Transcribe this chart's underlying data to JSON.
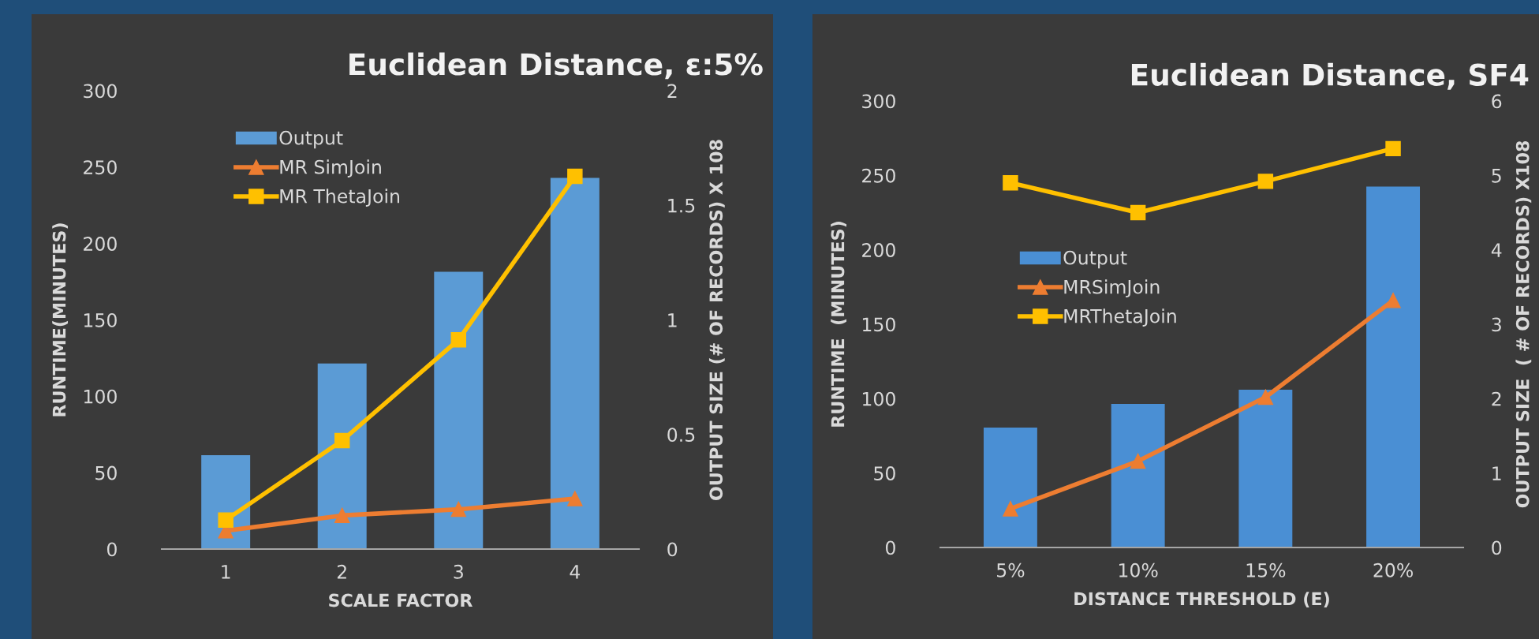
{
  "chart_data": [
    {
      "type": "bar",
      "title": "Euclidean Distance, ε:5%",
      "xlabel": "SCALE FACTOR",
      "ylabel": "RUNTIME(MINUTES)",
      "y2label": "OUTPUT SIZE (# OF RECORDS) X 108",
      "categories": [
        "1",
        "2",
        "3",
        "4"
      ],
      "series": [
        {
          "name": "Output",
          "axis": "y2",
          "color": "#5b9bd5",
          "values": [
            0.41,
            0.81,
            1.21,
            1.62
          ]
        },
        {
          "name": "MR SimJoin",
          "type": "line",
          "marker": "triangle",
          "color": "#ed7d31",
          "values": [
            12,
            22,
            26,
            33
          ]
        },
        {
          "name": "MR ThetaJoin",
          "type": "line",
          "marker": "square",
          "color": "#ffc000",
          "values": [
            19,
            71,
            137,
            244
          ]
        }
      ],
      "ylim": [
        0,
        300
      ],
      "yticks": [
        0,
        50,
        100,
        150,
        200,
        250,
        300
      ],
      "y2lim": [
        0,
        2
      ],
      "y2ticks": [
        0,
        0.5,
        1,
        1.5,
        2
      ],
      "grid": false,
      "legend": "top left"
    },
    {
      "type": "bar",
      "title": "Euclidean Distance, SF4",
      "xlabel": "DISTANCE THRESHOLD (E)",
      "ylabel": "RUNTIME  (MINUTES)",
      "y2label": "OUTPUT SIZE  ( # OF RECORDS) X108",
      "categories": [
        "5%",
        "10%",
        "15%",
        "20%"
      ],
      "series": [
        {
          "name": "Output",
          "axis": "y2",
          "color": "#4a8fd4",
          "values": [
            1.61,
            1.93,
            2.12,
            4.85
          ]
        },
        {
          "name": "MRSimJoin",
          "type": "line",
          "marker": "triangle",
          "color": "#ed7d31",
          "values": [
            26,
            58,
            101,
            166
          ]
        },
        {
          "name": "MRThetaJoin",
          "type": "line",
          "marker": "square",
          "color": "#ffc000",
          "values": [
            245,
            225,
            246,
            268
          ]
        }
      ],
      "ylim": [
        0,
        300
      ],
      "yticks": [
        0,
        50,
        100,
        150,
        200,
        250,
        300
      ],
      "y2lim": [
        0,
        6
      ],
      "y2ticks": [
        0,
        1,
        2,
        3,
        4,
        5,
        6
      ],
      "grid": false,
      "legend": "left"
    }
  ]
}
